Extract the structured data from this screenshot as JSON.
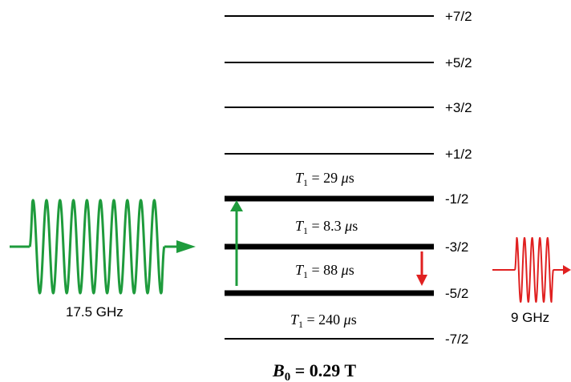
{
  "levels": [
    {
      "label": "+7/2",
      "thick": false
    },
    {
      "label": "+5/2",
      "thick": false
    },
    {
      "label": "+3/2",
      "thick": false
    },
    {
      "label": "+1/2",
      "thick": false
    },
    {
      "label": "-1/2",
      "thick": true
    },
    {
      "label": "-3/2",
      "thick": true
    },
    {
      "label": "-5/2",
      "thick": true
    },
    {
      "label": "-7/2",
      "thick": false
    }
  ],
  "relaxation": [
    {
      "symbol": "T",
      "sub": "1",
      "rest": " = 29 ",
      "mu": "μ",
      "unit": "s"
    },
    {
      "symbol": "T",
      "sub": "1",
      "rest": " = 8.3 ",
      "mu": "μ",
      "unit": "s"
    },
    {
      "symbol": "T",
      "sub": "1",
      "rest": " = 88 ",
      "mu": "μ",
      "unit": "s"
    },
    {
      "symbol": "T",
      "sub": "1",
      "rest": " = 240 ",
      "mu": "μ",
      "unit": "s"
    }
  ],
  "field": {
    "symbol": "B",
    "sub": "0",
    "rest": " = 0.29 T"
  },
  "pulses": {
    "pump": {
      "label": "17.5 GHz",
      "color": "#1e9b3c"
    },
    "probe": {
      "label": "9 GHz",
      "color": "#e02020"
    }
  }
}
